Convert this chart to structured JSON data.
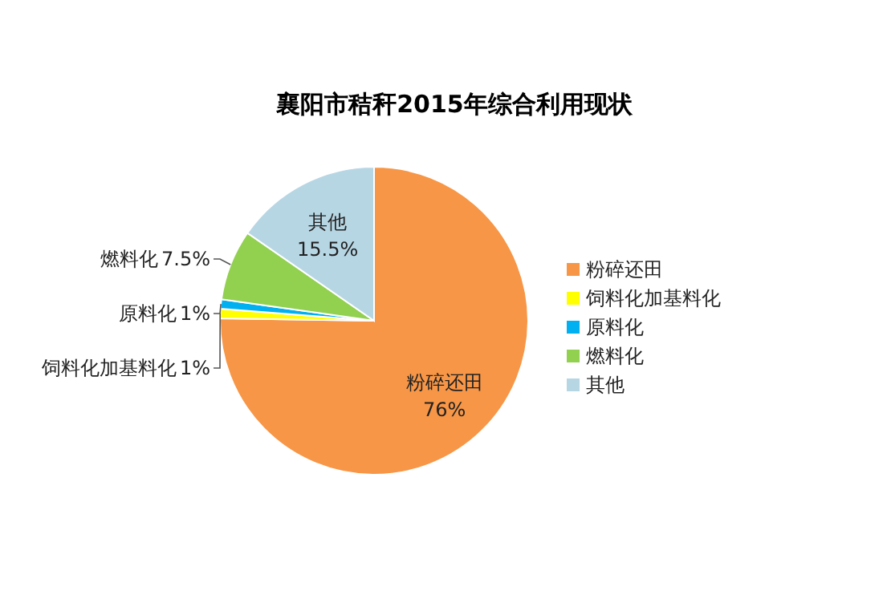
{
  "chart_data": {
    "type": "pie",
    "title": "襄阳市秸秆2015年综合利用现状",
    "categories": [
      "粉碎还田",
      "饲料化加基料化",
      "原料化",
      "燃料化",
      "其他"
    ],
    "values": [
      76,
      1,
      1,
      7.5,
      15.5
    ],
    "colors": [
      "#f79646",
      "#ffff00",
      "#00b0f0",
      "#92d050",
      "#b7d6e4"
    ],
    "value_labels": [
      "76%",
      "1%",
      "1%",
      "7.5%",
      "15.5%"
    ],
    "legend": "right"
  }
}
